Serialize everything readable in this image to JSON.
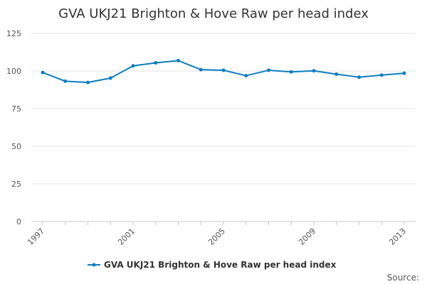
{
  "chart_data": {
    "type": "line",
    "title": "GVA UKJ21 Brighton & Hove Raw per head index",
    "xlabel": "",
    "ylabel": "",
    "x": [
      1997,
      1998,
      1999,
      2000,
      2001,
      2002,
      2003,
      2004,
      2005,
      2006,
      2007,
      2008,
      2009,
      2010,
      2011,
      2012,
      2013
    ],
    "series": [
      {
        "name": "GVA UKJ21 Brighton & Hove Raw per head index",
        "values": [
          99.0,
          93.2,
          92.4,
          95.3,
          103.4,
          105.4,
          106.9,
          100.9,
          100.5,
          96.9,
          100.5,
          99.4,
          100.1,
          97.9,
          95.9,
          97.3,
          98.5
        ],
        "color": "#0d7dc1"
      }
    ],
    "ylim": [
      0,
      125
    ],
    "yticks": [
      0,
      25,
      50,
      75,
      100,
      125
    ],
    "xticks": [
      1997,
      2001,
      2005,
      2009,
      2013
    ],
    "grid": true,
    "legend_position": "bottom"
  },
  "source_label": "Source:"
}
